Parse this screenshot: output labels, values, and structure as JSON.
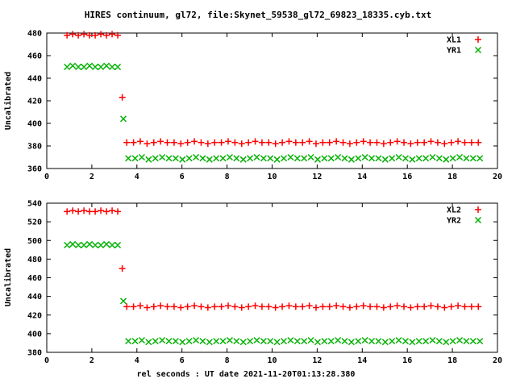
{
  "title": "HIRES continuum, gl72, file:Skynet_59538_gl72_69823_18335.cyb.txt",
  "xlabel": "rel seconds : UT date 2021-11-20T01:13:28.380",
  "colors": {
    "background": "#ffffff",
    "axis": "#000000",
    "title_text": "#000000",
    "series_red": "#ff0000",
    "series_green": "#00b000"
  },
  "chart_data": [
    {
      "type": "scatter",
      "panel": "top",
      "ylabel": "Uncalibrated",
      "xlim": [
        0,
        20
      ],
      "ylim": [
        360,
        480
      ],
      "x_ticks": [
        0,
        2,
        4,
        6,
        8,
        10,
        12,
        14,
        16,
        18,
        20
      ],
      "y_ticks": [
        360,
        380,
        400,
        420,
        440,
        460,
        480
      ],
      "grid": false,
      "legend_position": "top-right",
      "series": [
        {
          "name": "XL1",
          "marker": "plus",
          "color": "#ff0000",
          "segments": [
            {
              "x": [
                0.9,
                1.15,
                1.4,
                1.65,
                1.9,
                2.15,
                2.4,
                2.65,
                2.9,
                3.15
              ],
              "y": [
                478,
                479,
                478,
                479,
                478,
                478,
                479,
                478,
                479,
                478
              ]
            },
            {
              "x": [
                3.35
              ],
              "y": [
                423
              ]
            },
            {
              "x_start": 3.55,
              "x_step": 0.3,
              "y": [
                383,
                383,
                384,
                382,
                383,
                384,
                383,
                383,
                382,
                383,
                384,
                383,
                382,
                383,
                383,
                384,
                383,
                382,
                383,
                384,
                383,
                383,
                382,
                383,
                384,
                383,
                383,
                384,
                382,
                383,
                383,
                384,
                383,
                382,
                383,
                384,
                383,
                383,
                382,
                383,
                384,
                383,
                382,
                383,
                383,
                384,
                383,
                382,
                383,
                384,
                383,
                383,
                383
              ]
            }
          ]
        },
        {
          "name": "YR1",
          "marker": "cross",
          "color": "#00b000",
          "segments": [
            {
              "x": [
                0.9,
                1.15,
                1.4,
                1.65,
                1.9,
                2.15,
                2.4,
                2.65,
                2.9,
                3.15
              ],
              "y": [
                450,
                451,
                450,
                450,
                451,
                450,
                450,
                451,
                450,
                450
              ]
            },
            {
              "x": [
                3.4
              ],
              "y": [
                404
              ]
            },
            {
              "x_start": 3.62,
              "x_step": 0.3,
              "y": [
                369,
                369,
                370,
                368,
                369,
                370,
                369,
                369,
                368,
                369,
                370,
                369,
                368,
                369,
                369,
                370,
                369,
                368,
                369,
                370,
                369,
                369,
                368,
                369,
                370,
                369,
                369,
                370,
                368,
                369,
                369,
                370,
                369,
                368,
                369,
                370,
                369,
                369,
                368,
                369,
                370,
                369,
                368,
                369,
                369,
                370,
                369,
                368,
                369,
                370,
                369,
                369,
                369
              ]
            }
          ]
        }
      ]
    },
    {
      "type": "scatter",
      "panel": "bottom",
      "ylabel": "Uncalibrated",
      "xlim": [
        0,
        20
      ],
      "ylim": [
        380,
        540
      ],
      "x_ticks": [
        0,
        2,
        4,
        6,
        8,
        10,
        12,
        14,
        16,
        18,
        20
      ],
      "y_ticks": [
        380,
        400,
        420,
        440,
        460,
        480,
        500,
        520,
        540
      ],
      "grid": false,
      "legend_position": "top-right",
      "series": [
        {
          "name": "XL2",
          "marker": "plus",
          "color": "#ff0000",
          "segments": [
            {
              "x": [
                0.9,
                1.15,
                1.4,
                1.65,
                1.9,
                2.15,
                2.4,
                2.65,
                2.9,
                3.15
              ],
              "y": [
                531,
                532,
                531,
                532,
                531,
                531,
                532,
                531,
                532,
                531
              ]
            },
            {
              "x": [
                3.35
              ],
              "y": [
                470
              ]
            },
            {
              "x_start": 3.55,
              "x_step": 0.3,
              "y": [
                429,
                429,
                430,
                428,
                429,
                430,
                429,
                429,
                428,
                429,
                430,
                429,
                428,
                429,
                429,
                430,
                429,
                428,
                429,
                430,
                429,
                429,
                428,
                429,
                430,
                429,
                429,
                430,
                428,
                429,
                429,
                430,
                429,
                428,
                429,
                430,
                429,
                429,
                428,
                429,
                430,
                429,
                428,
                429,
                429,
                430,
                429,
                428,
                429,
                430,
                429,
                429,
                429
              ]
            }
          ]
        },
        {
          "name": "YR2",
          "marker": "cross",
          "color": "#00b000",
          "segments": [
            {
              "x": [
                0.9,
                1.15,
                1.4,
                1.65,
                1.9,
                2.15,
                2.4,
                2.65,
                2.9,
                3.15
              ],
              "y": [
                495,
                496,
                495,
                495,
                496,
                495,
                495,
                496,
                495,
                495
              ]
            },
            {
              "x": [
                3.4
              ],
              "y": [
                435
              ]
            },
            {
              "x_start": 3.62,
              "x_step": 0.3,
              "y": [
                392,
                392,
                393,
                391,
                392,
                393,
                392,
                392,
                391,
                392,
                393,
                392,
                391,
                392,
                392,
                393,
                392,
                391,
                392,
                393,
                392,
                392,
                391,
                392,
                393,
                392,
                392,
                393,
                391,
                392,
                392,
                393,
                392,
                391,
                392,
                393,
                392,
                392,
                391,
                392,
                393,
                392,
                391,
                392,
                392,
                393,
                392,
                391,
                392,
                393,
                392,
                392,
                392
              ]
            }
          ]
        }
      ]
    }
  ]
}
